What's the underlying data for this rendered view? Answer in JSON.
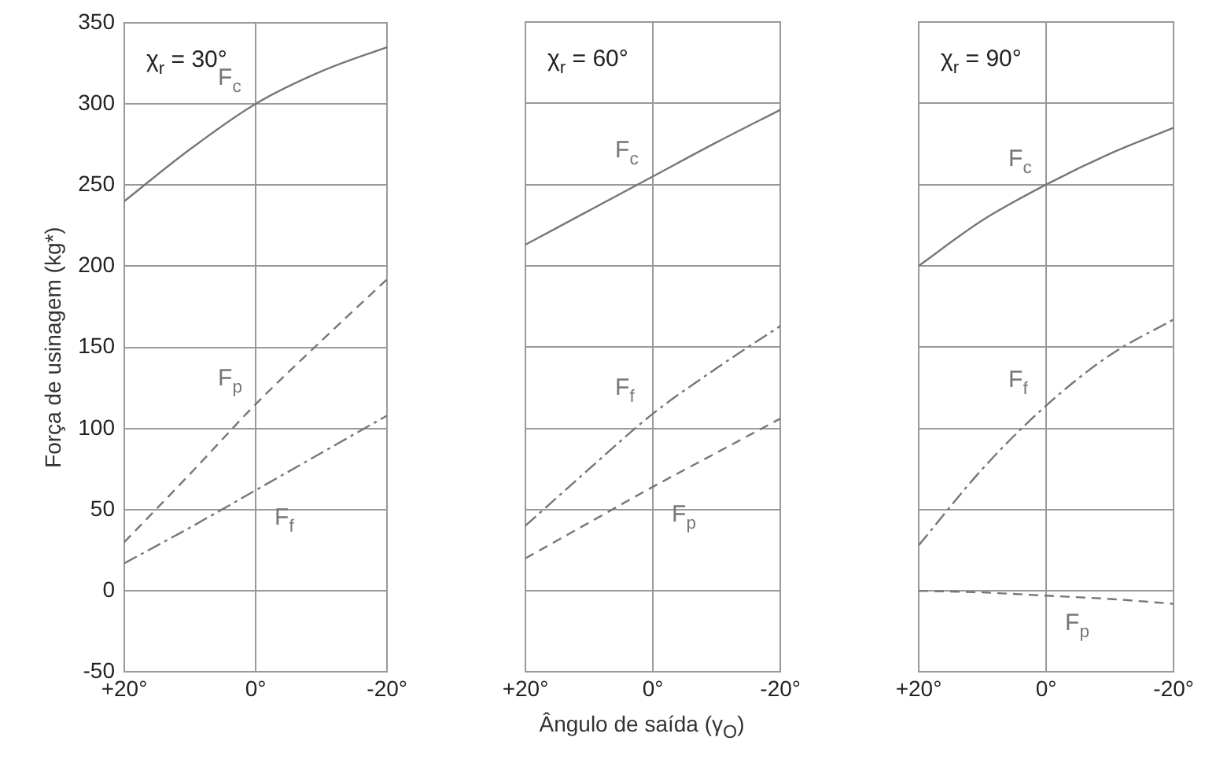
{
  "chart_data": [
    {
      "type": "line",
      "title": "χ$_{r}$ = 30°",
      "ylabel": "Força de usinagem (kg*)",
      "x": [
        20,
        10,
        0,
        -10,
        -20
      ],
      "xlim": [
        20,
        -20
      ],
      "xticks": [
        {
          "value": 20,
          "label": "+20°"
        },
        {
          "value": 0,
          "label": "0°"
        },
        {
          "value": -20,
          "label": "-20°"
        }
      ],
      "ylim": [
        -50,
        350
      ],
      "yticks": [
        -50,
        0,
        50,
        100,
        150,
        200,
        250,
        300,
        350
      ],
      "grid": true,
      "marker": "none",
      "series": [
        {
          "name": "F$_{c}$",
          "color": "#777777",
          "line_style": "solid",
          "values": [
            240,
            272,
            300,
            320,
            335
          ]
        },
        {
          "name": "F$_{p}$",
          "color": "#777777",
          "line_style": "dashed",
          "values": [
            30,
            72,
            115,
            154,
            192
          ]
        },
        {
          "name": "F$_{f}$",
          "color": "#777777",
          "line_style": "dotted",
          "values": [
            17,
            39,
            62,
            85,
            108
          ]
        }
      ]
    },
    {
      "type": "line",
      "title": "χ$_{r}$ = 60°",
      "xlabel": "Ângulo de saída (γ$_{O}$)",
      "x": [
        20,
        10,
        0,
        -10,
        -20
      ],
      "xlim": [
        20,
        -20
      ],
      "xticks": [
        {
          "value": 20,
          "label": "+20°"
        },
        {
          "value": 0,
          "label": "0°"
        },
        {
          "value": -20,
          "label": "-20°"
        }
      ],
      "ylim": [
        -50,
        350
      ],
      "yticks": [
        -50,
        0,
        50,
        100,
        150,
        200,
        250,
        300,
        350
      ],
      "grid": true,
      "tick_labels": "x",
      "marker": "none",
      "series": [
        {
          "name": "F$_{c}$",
          "color": "#777777",
          "line_style": "solid",
          "values": [
            213,
            234,
            255,
            276,
            296
          ]
        },
        {
          "name": "F$_{f}$",
          "color": "#777777",
          "line_style": "dotted",
          "values": [
            40,
            75,
            109,
            137,
            163
          ]
        },
        {
          "name": "F$_{p}$",
          "color": "#777777",
          "line_style": "dashed",
          "values": [
            20,
            42,
            64,
            85,
            106
          ]
        }
      ]
    },
    {
      "type": "line",
      "title": "χ$_{r}$ = 90°",
      "x": [
        20,
        10,
        0,
        -10,
        -20
      ],
      "xlim": [
        20,
        -20
      ],
      "xticks": [
        {
          "value": 20,
          "label": "+20°"
        },
        {
          "value": 0,
          "label": "0°"
        },
        {
          "value": -20,
          "label": "-20°"
        }
      ],
      "ylim": [
        -50,
        350
      ],
      "yticks": [
        -50,
        0,
        50,
        100,
        150,
        200,
        250,
        300,
        350
      ],
      "grid": true,
      "tick_labels": "x",
      "marker": "none",
      "series": [
        {
          "name": "F$_{c}$",
          "color": "#777777",
          "line_style": "solid",
          "values": [
            200,
            228,
            250,
            269,
            285
          ]
        },
        {
          "name": "F$_{f}$",
          "color": "#777777",
          "line_style": "dotted",
          "values": [
            28,
            75,
            114,
            145,
            167
          ]
        },
        {
          "name": "F$_{p}$",
          "color": "#777777",
          "line_style": "dashed",
          "values": [
            0,
            -1,
            -3,
            -5,
            -8
          ]
        }
      ]
    }
  ]
}
